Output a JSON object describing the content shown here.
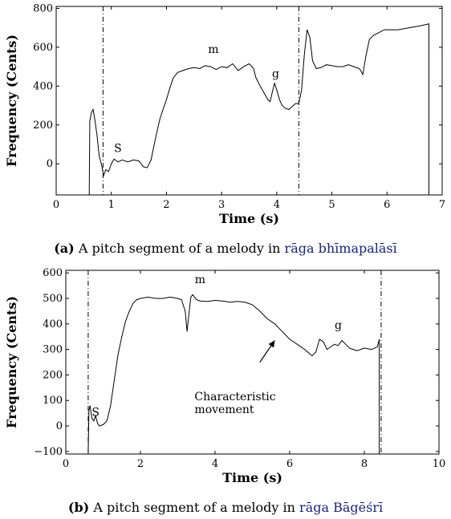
{
  "chart_data": [
    {
      "type": "line",
      "caption_tag": "(a)",
      "caption_text": "A pitch segment of a melody in",
      "raga_name": "rāga bhīmapalāsī",
      "xlabel": "Time (s)",
      "ylabel": "Frequency (Cents)",
      "xlim": [
        0,
        7
      ],
      "ylim": [
        -160,
        810
      ],
      "xticks": [
        "0",
        "1",
        "2",
        "3",
        "4",
        "5",
        "6",
        "7"
      ],
      "yticks": [
        "0",
        "200",
        "400",
        "600",
        "800"
      ],
      "vlines": [
        0.85,
        4.4
      ],
      "annotations": [
        {
          "text": "S",
          "x": 1.12,
          "y": 60
        },
        {
          "text": "m",
          "x": 2.85,
          "y": 570
        },
        {
          "text": "g",
          "x": 3.98,
          "y": 445
        }
      ],
      "series": [
        {
          "points": [
            [
              0.6,
              -160
            ],
            [
              0.61,
              220
            ],
            [
              0.64,
              265
            ],
            [
              0.67,
              280
            ],
            [
              0.7,
              230
            ],
            [
              0.74,
              150
            ],
            [
              0.78,
              40
            ],
            [
              0.82,
              0
            ],
            [
              0.86,
              -60
            ],
            [
              0.9,
              -30
            ],
            [
              0.95,
              -40
            ],
            [
              1.0,
              0
            ],
            [
              1.05,
              25
            ],
            [
              1.12,
              10
            ],
            [
              1.2,
              20
            ],
            [
              1.3,
              10
            ],
            [
              1.4,
              20
            ],
            [
              1.5,
              15
            ],
            [
              1.58,
              -15
            ],
            [
              1.65,
              -20
            ],
            [
              1.72,
              20
            ],
            [
              1.8,
              130
            ],
            [
              1.88,
              230
            ],
            [
              1.95,
              290
            ],
            [
              2.0,
              330
            ],
            [
              2.06,
              390
            ],
            [
              2.12,
              440
            ],
            [
              2.2,
              470
            ],
            [
              2.3,
              480
            ],
            [
              2.4,
              490
            ],
            [
              2.5,
              495
            ],
            [
              2.6,
              490
            ],
            [
              2.7,
              505
            ],
            [
              2.8,
              500
            ],
            [
              2.9,
              485
            ],
            [
              3.0,
              500
            ],
            [
              3.1,
              495
            ],
            [
              3.2,
              515
            ],
            [
              3.3,
              480
            ],
            [
              3.4,
              500
            ],
            [
              3.5,
              515
            ],
            [
              3.58,
              490
            ],
            [
              3.62,
              445
            ],
            [
              3.7,
              400
            ],
            [
              3.78,
              360
            ],
            [
              3.84,
              330
            ],
            [
              3.88,
              320
            ],
            [
              3.92,
              370
            ],
            [
              3.96,
              415
            ],
            [
              4.0,
              380
            ],
            [
              4.05,
              330
            ],
            [
              4.1,
              300
            ],
            [
              4.16,
              285
            ],
            [
              4.22,
              280
            ],
            [
              4.28,
              295
            ],
            [
              4.34,
              310
            ],
            [
              4.4,
              310
            ],
            [
              4.45,
              380
            ],
            [
              4.5,
              560
            ],
            [
              4.55,
              690
            ],
            [
              4.6,
              650
            ],
            [
              4.65,
              530
            ],
            [
              4.72,
              490
            ],
            [
              4.8,
              495
            ],
            [
              4.9,
              510
            ],
            [
              5.0,
              505
            ],
            [
              5.1,
              500
            ],
            [
              5.2,
              500
            ],
            [
              5.3,
              510
            ],
            [
              5.4,
              500
            ],
            [
              5.5,
              490
            ],
            [
              5.56,
              460
            ],
            [
              5.62,
              560
            ],
            [
              5.68,
              640
            ],
            [
              5.75,
              660
            ],
            [
              5.85,
              675
            ],
            [
              5.95,
              690
            ],
            [
              6.05,
              690
            ],
            [
              6.2,
              690
            ],
            [
              6.4,
              700
            ],
            [
              6.6,
              710
            ],
            [
              6.76,
              720
            ],
            [
              6.76,
              -160
            ]
          ]
        }
      ]
    },
    {
      "type": "line",
      "caption_tag": "(b)",
      "caption_text": "A pitch segment of a melody in",
      "raga_name": "rāga Bāgēśrī",
      "xlabel": "Time (s)",
      "ylabel": "Frequency (Cents)",
      "xlim": [
        0,
        10
      ],
      "ylim": [
        -110,
        610
      ],
      "xticks": [
        "0",
        "2",
        "4",
        "6",
        "8",
        "10"
      ],
      "yticks": [
        "−100",
        "0",
        "100",
        "200",
        "300",
        "400",
        "500",
        "600"
      ],
      "ytick_values": [
        -100,
        0,
        100,
        200,
        300,
        400,
        500,
        600
      ],
      "vlines": [
        0.6,
        8.45
      ],
      "annotations": [
        {
          "text": "S",
          "x": 0.8,
          "y": 40
        },
        {
          "text": "m",
          "x": 3.6,
          "y": 560
        },
        {
          "text": "g",
          "x": 7.3,
          "y": 380
        },
        {
          "text": "Characteristic",
          "x": 3.45,
          "y": 100
        },
        {
          "text": "movement",
          "x": 3.45,
          "y": 50
        }
      ],
      "arrow": {
        "from": [
          5.2,
          250
        ],
        "to": [
          5.6,
          335
        ]
      },
      "series": [
        {
          "points": [
            [
              0.6,
              -110
            ],
            [
              0.62,
              60
            ],
            [
              0.65,
              80
            ],
            [
              0.7,
              30
            ],
            [
              0.75,
              20
            ],
            [
              0.8,
              40
            ],
            [
              0.85,
              10
            ],
            [
              0.9,
              0
            ],
            [
              1.0,
              5
            ],
            [
              1.1,
              20
            ],
            [
              1.2,
              80
            ],
            [
              1.3,
              180
            ],
            [
              1.4,
              280
            ],
            [
              1.5,
              350
            ],
            [
              1.6,
              410
            ],
            [
              1.7,
              450
            ],
            [
              1.8,
              480
            ],
            [
              1.9,
              495
            ],
            [
              2.0,
              500
            ],
            [
              2.2,
              505
            ],
            [
              2.4,
              500
            ],
            [
              2.6,
              500
            ],
            [
              2.8,
              505
            ],
            [
              3.0,
              500
            ],
            [
              3.1,
              495
            ],
            [
              3.2,
              450
            ],
            [
              3.25,
              370
            ],
            [
              3.3,
              440
            ],
            [
              3.35,
              505
            ],
            [
              3.4,
              515
            ],
            [
              3.5,
              495
            ],
            [
              3.6,
              490
            ],
            [
              3.8,
              488
            ],
            [
              4.0,
              492
            ],
            [
              4.2,
              490
            ],
            [
              4.4,
              485
            ],
            [
              4.6,
              488
            ],
            [
              4.8,
              485
            ],
            [
              5.0,
              475
            ],
            [
              5.2,
              450
            ],
            [
              5.4,
              420
            ],
            [
              5.6,
              400
            ],
            [
              5.8,
              370
            ],
            [
              6.0,
              340
            ],
            [
              6.2,
              320
            ],
            [
              6.4,
              300
            ],
            [
              6.6,
              275
            ],
            [
              6.7,
              290
            ],
            [
              6.8,
              340
            ],
            [
              6.9,
              330
            ],
            [
              7.0,
              300
            ],
            [
              7.1,
              310
            ],
            [
              7.2,
              320
            ],
            [
              7.3,
              315
            ],
            [
              7.4,
              335
            ],
            [
              7.5,
              320
            ],
            [
              7.6,
              305
            ],
            [
              7.7,
              300
            ],
            [
              7.8,
              295
            ],
            [
              8.0,
              305
            ],
            [
              8.2,
              300
            ],
            [
              8.35,
              310
            ],
            [
              8.4,
              340
            ],
            [
              8.4,
              -110
            ]
          ]
        }
      ]
    }
  ]
}
